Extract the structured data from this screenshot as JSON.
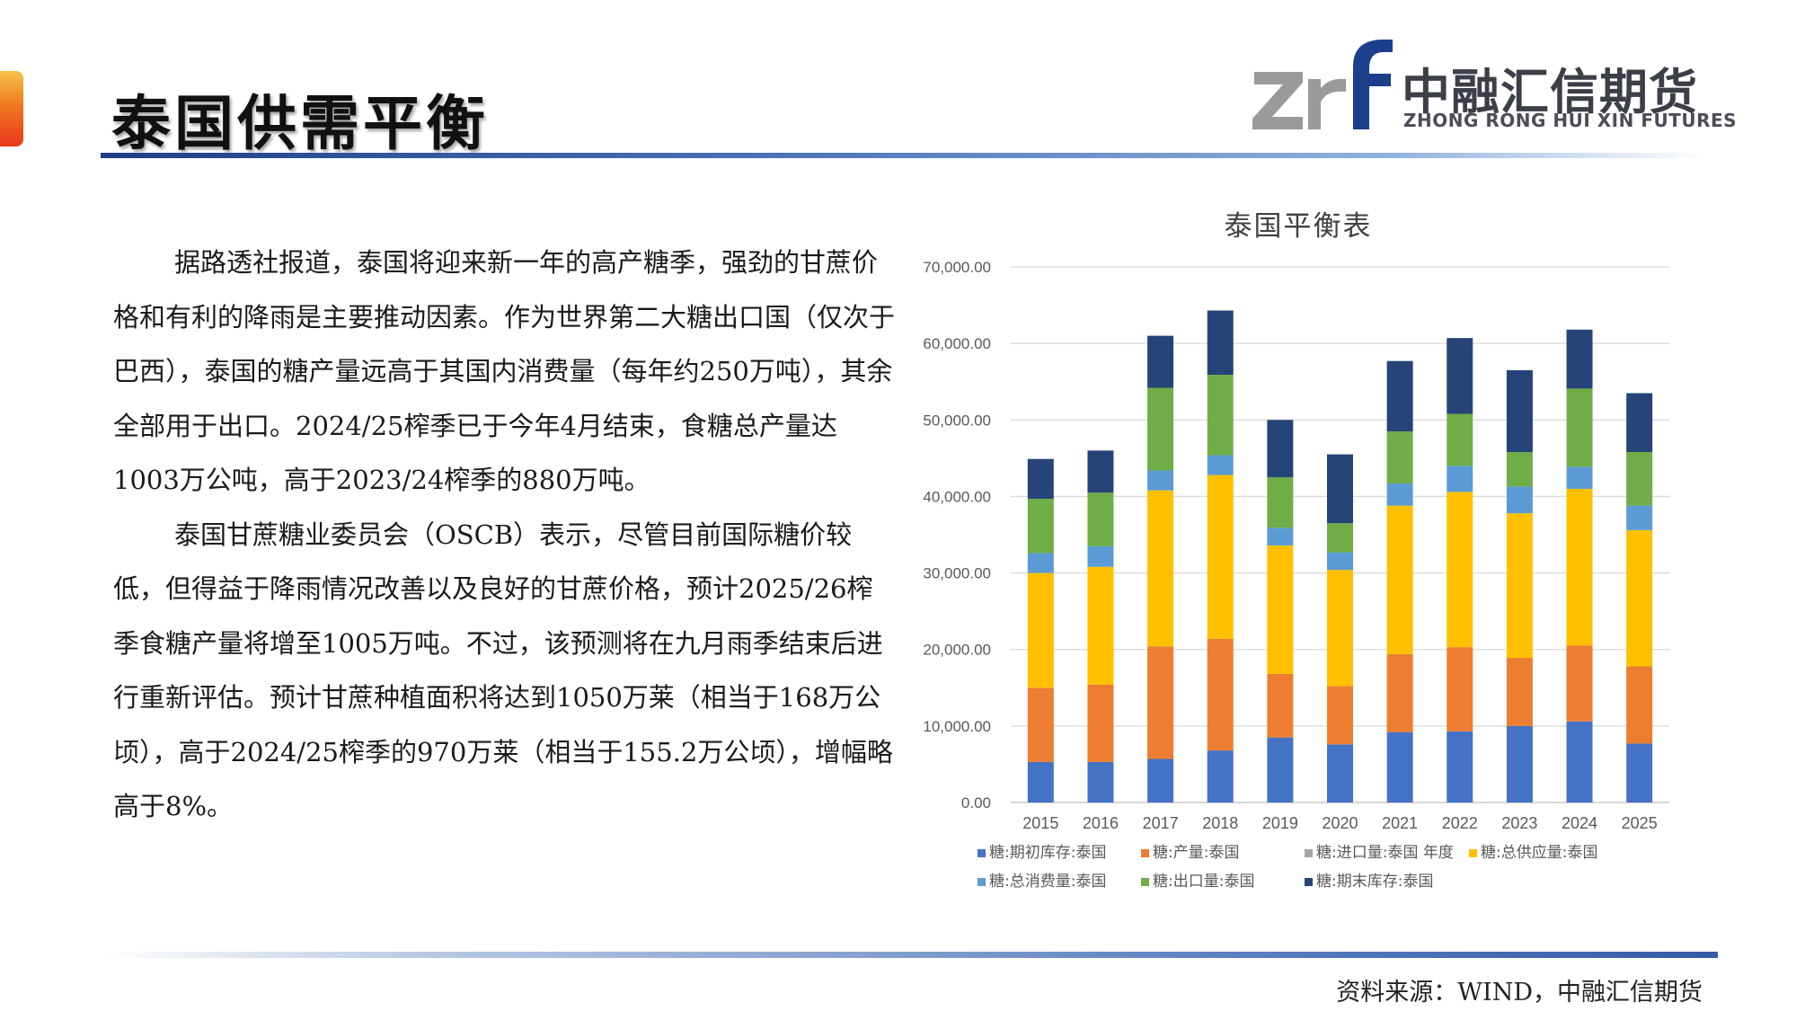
{
  "header": {
    "title": "泰国供需平衡",
    "logo_cn": "中融汇信期货",
    "logo_en": "ZHONG RONG HUI XIN FUTURES",
    "logo_mark": "zrf"
  },
  "body": {
    "paragraphs": [
      "据路透社报道，泰国将迎来新一年的高产糖季，强劲的甘蔗价格和有利的降雨是主要推动因素。作为世界第二大糖出口国（仅次于巴西），泰国的糖产量远高于其国内消费量（每年约250万吨），其余全部用于出口。2024/25榨季已于今年4月结束，食糖总产量达1003万公吨，高于2023/24榨季的880万吨。",
      "泰国甘蔗糖业委员会（OSCB）表示，尽管目前国际糖价较低，但得益于降雨情况改善以及良好的甘蔗价格，预计2025/26榨季食糖产量将增至1005万吨。不过，该预测将在九月雨季结束后进行重新评估。预计甘蔗种植面积将达到1050万莱（相当于168万公顷），高于2024/25榨季的970万莱（相当于155.2万公顷），增幅略高于8%。"
    ]
  },
  "footer": {
    "source": "资料来源：WIND，中融汇信期货"
  },
  "colors": {
    "accent_tab": "#ef7a1f",
    "rule": "#3559a6",
    "logo_blue": "#1b3f8b",
    "logo_gray": "#9a9a9a"
  },
  "chart_data": {
    "type": "bar",
    "stacked": true,
    "title": "泰国平衡表",
    "categories": [
      "2015",
      "2016",
      "2017",
      "2018",
      "2019",
      "2020",
      "2021",
      "2022",
      "2023",
      "2024",
      "2025"
    ],
    "ylim": [
      0,
      70000
    ],
    "yticks": [
      0,
      10000,
      20000,
      30000,
      40000,
      50000,
      60000,
      70000
    ],
    "ytick_labels": [
      "0.00",
      "10,000.00",
      "20,000.00",
      "30,000.00",
      "40,000.00",
      "50,000.00",
      "60,000.00",
      "70,000.00"
    ],
    "grid": true,
    "legend_position": "bottom",
    "series": [
      {
        "name": "糖:期初库存:泰国",
        "color": "#4472c4",
        "values": [
          5300,
          5300,
          5700,
          6800,
          8500,
          7600,
          9200,
          9300,
          10000,
          10600,
          7700
        ]
      },
      {
        "name": "糖:产量:泰国",
        "color": "#ed7d31",
        "values": [
          9700,
          10100,
          14700,
          14600,
          8300,
          7600,
          10200,
          11000,
          8900,
          9900,
          10100
        ]
      },
      {
        "name": "糖:进口量:泰国 年度",
        "color": "#a5a5a5",
        "values": [
          0,
          0,
          0,
          0,
          0,
          0,
          0,
          0,
          0,
          0,
          0
        ]
      },
      {
        "name": "糖:总供应量:泰国",
        "color": "#ffc000",
        "values": [
          15000,
          15400,
          20400,
          21400,
          16800,
          15200,
          19400,
          20300,
          18900,
          20500,
          17800
        ]
      },
      {
        "name": "糖:总消费量:泰国",
        "color": "#5b9bd5",
        "values": [
          2600,
          2700,
          2600,
          2600,
          2300,
          2300,
          2900,
          3400,
          3500,
          2900,
          3200
        ]
      },
      {
        "name": "糖:出口量:泰国",
        "color": "#70ad47",
        "values": [
          7100,
          7000,
          10800,
          10500,
          6600,
          3800,
          6800,
          6800,
          4500,
          10200,
          7000
        ]
      },
      {
        "name": "糖:期末库存:泰国",
        "color": "#264478",
        "values": [
          5200,
          5500,
          6800,
          8400,
          7500,
          9000,
          9200,
          9900,
          10700,
          7700,
          7700
        ]
      }
    ]
  }
}
